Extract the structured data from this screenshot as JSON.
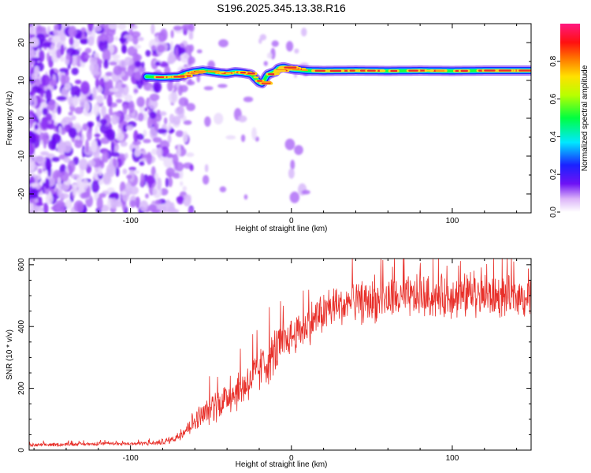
{
  "title": "S196.2025.345.13.38.R16",
  "colors": {
    "snr_line": "#e8302a",
    "axis": "#000000",
    "noise_purple": "#7a1cf0",
    "trace_hot": "#e8202a"
  },
  "chart_data": [
    {
      "type": "heatmap",
      "title": "S196.2025.345.13.38.R16",
      "xlabel": "Height of straight line (km)",
      "ylabel": "Frequency (Hz)",
      "xlim": [
        -163,
        149
      ],
      "ylim": [
        -25,
        25
      ],
      "xticks": [
        -100,
        0,
        100
      ],
      "yticks": [
        20,
        10,
        0,
        -10,
        -20
      ],
      "colorbar": {
        "label": "Normalized spectral amplitude",
        "range": [
          0,
          1
        ],
        "ticks": [
          "0.0",
          "0.2",
          "0.4",
          "0.6",
          "0.8"
        ],
        "tick_values": [
          0,
          0.2,
          0.4,
          0.6,
          0.8
        ]
      },
      "noise_region_x": [
        -163,
        -70
      ],
      "trace": {
        "x": [
          -90,
          -80,
          -70,
          -65,
          -60,
          -55,
          -50,
          -45,
          -40,
          -35,
          -30,
          -25,
          -20,
          -18,
          -15,
          -12,
          -10,
          -8,
          -5,
          0,
          10,
          20,
          40,
          60,
          80,
          100,
          120,
          149
        ],
        "freq": [
          11.0,
          10.8,
          11.0,
          11.8,
          12.3,
          12.6,
          12.3,
          12.0,
          11.8,
          12.2,
          12.0,
          11.6,
          9.5,
          9.2,
          11.5,
          12.0,
          12.3,
          13.2,
          13.5,
          13.0,
          12.6,
          12.5,
          12.6,
          12.5,
          12.6,
          12.5,
          12.6,
          12.6
        ]
      }
    },
    {
      "type": "line",
      "xlabel": "Height of straight line (km)",
      "ylabel": "SNR (10 * v/v)",
      "xlim": [
        -163,
        149
      ],
      "ylim": [
        0,
        620
      ],
      "xticks": [
        -100,
        0,
        100
      ],
      "yticks": [
        0,
        200,
        400,
        600
      ],
      "series": [
        {
          "name": "SNR",
          "x": [
            -163,
            -140,
            -120,
            -100,
            -85,
            -75,
            -70,
            -60,
            -50,
            -40,
            -30,
            -20,
            -10,
            0,
            10,
            20,
            30,
            40,
            60,
            80,
            100,
            120,
            149
          ],
          "y": [
            15,
            18,
            20,
            20,
            22,
            30,
            45,
            90,
            130,
            165,
            200,
            250,
            310,
            360,
            400,
            440,
            460,
            470,
            480,
            490,
            490,
            490,
            490
          ],
          "spread": [
            10,
            10,
            10,
            10,
            12,
            20,
            30,
            60,
            80,
            100,
            110,
            120,
            130,
            110,
            110,
            110,
            110,
            110,
            110,
            110,
            110,
            110,
            110
          ]
        }
      ]
    }
  ]
}
